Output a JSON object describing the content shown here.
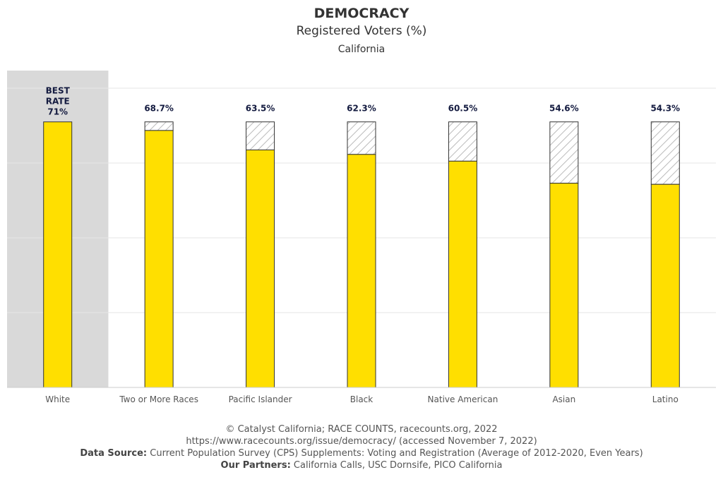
{
  "header": {
    "title": "DEMOCRACY",
    "subtitle": "Registered Voters (%)",
    "region": "California"
  },
  "chart_data": {
    "type": "bar",
    "categories": [
      "White",
      "Two or More Races",
      "Pacific Islander",
      "Black",
      "Native American",
      "Asian",
      "Latino"
    ],
    "values": [
      71,
      68.7,
      63.5,
      62.3,
      60.5,
      54.6,
      54.3
    ],
    "value_labels": [
      "71%",
      "68.7%",
      "63.5%",
      "62.3%",
      "60.5%",
      "54.6%",
      "54.3%"
    ],
    "best_rate_label": [
      "BEST",
      "RATE"
    ],
    "best_index": 0,
    "ylim": [
      0,
      80
    ],
    "grid": true,
    "colors": {
      "bar": "#FFDF00",
      "highlight_bg": "#D9D9D9",
      "gap_hatch": "#BBBBBB",
      "label": "#141B40"
    }
  },
  "footer": {
    "line1": "© Catalyst California; RACE COUNTS, racecounts.org, 2022",
    "line2": "https://www.racecounts.org/issue/democracy/ (accessed November 7, 2022)",
    "line3_label": "Data Source:",
    "line3_text": " Current Population Survey (CPS) Supplements: Voting and Registration (Average of 2012-2020, Even Years)",
    "line4_label": "Our Partners:",
    "line4_text": " California Calls, USC Dornsife, PICO California"
  }
}
